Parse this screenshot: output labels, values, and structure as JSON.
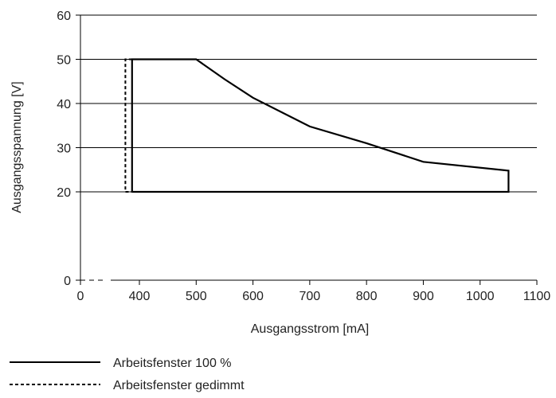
{
  "chart_data": {
    "type": "line",
    "title": "",
    "xlabel": "Ausgangsstrom [mA]",
    "ylabel": "Ausgangsspannung [V]",
    "grid": "horizontal",
    "legend_position": "bottom-left",
    "x_axis_break": true,
    "xlim": [
      0,
      1100
    ],
    "ylim": [
      0,
      60
    ],
    "x_ticks": [
      {
        "value": 0,
        "label": "0"
      },
      {
        "value": 400,
        "label": "400"
      },
      {
        "value": 500,
        "label": "500"
      },
      {
        "value": 600,
        "label": "600"
      },
      {
        "value": 700,
        "label": "700"
      },
      {
        "value": 800,
        "label": "800"
      },
      {
        "value": 900,
        "label": "900"
      },
      {
        "value": 1000,
        "label": "1000"
      },
      {
        "value": 1100,
        "label": "1100"
      }
    ],
    "y_ticks": [
      {
        "value": 0,
        "label": "0"
      },
      {
        "value": 20,
        "label": "20"
      },
      {
        "value": 30,
        "label": "30"
      },
      {
        "value": 40,
        "label": "40"
      },
      {
        "value": 50,
        "label": "50"
      },
      {
        "value": 60,
        "label": "60"
      }
    ],
    "series": [
      {
        "name": "Arbeitsfenster 100 %",
        "style": "solid",
        "color": "#000000",
        "points": [
          [
            350,
            20
          ],
          [
            350,
            50
          ],
          [
            500,
            50
          ],
          [
            550,
            45.5
          ],
          [
            600,
            41.3
          ],
          [
            700,
            34.8
          ],
          [
            800,
            31
          ],
          [
            900,
            26.8
          ],
          [
            1050,
            24.8
          ],
          [
            1050,
            20
          ],
          [
            350,
            20
          ]
        ]
      },
      {
        "name": "Arbeitsfenster gedimmt",
        "style": "dashed",
        "color": "#000000",
        "points": [
          [
            350,
            50
          ],
          [
            305,
            50
          ],
          [
            305,
            20
          ],
          [
            350,
            20
          ]
        ]
      }
    ]
  }
}
